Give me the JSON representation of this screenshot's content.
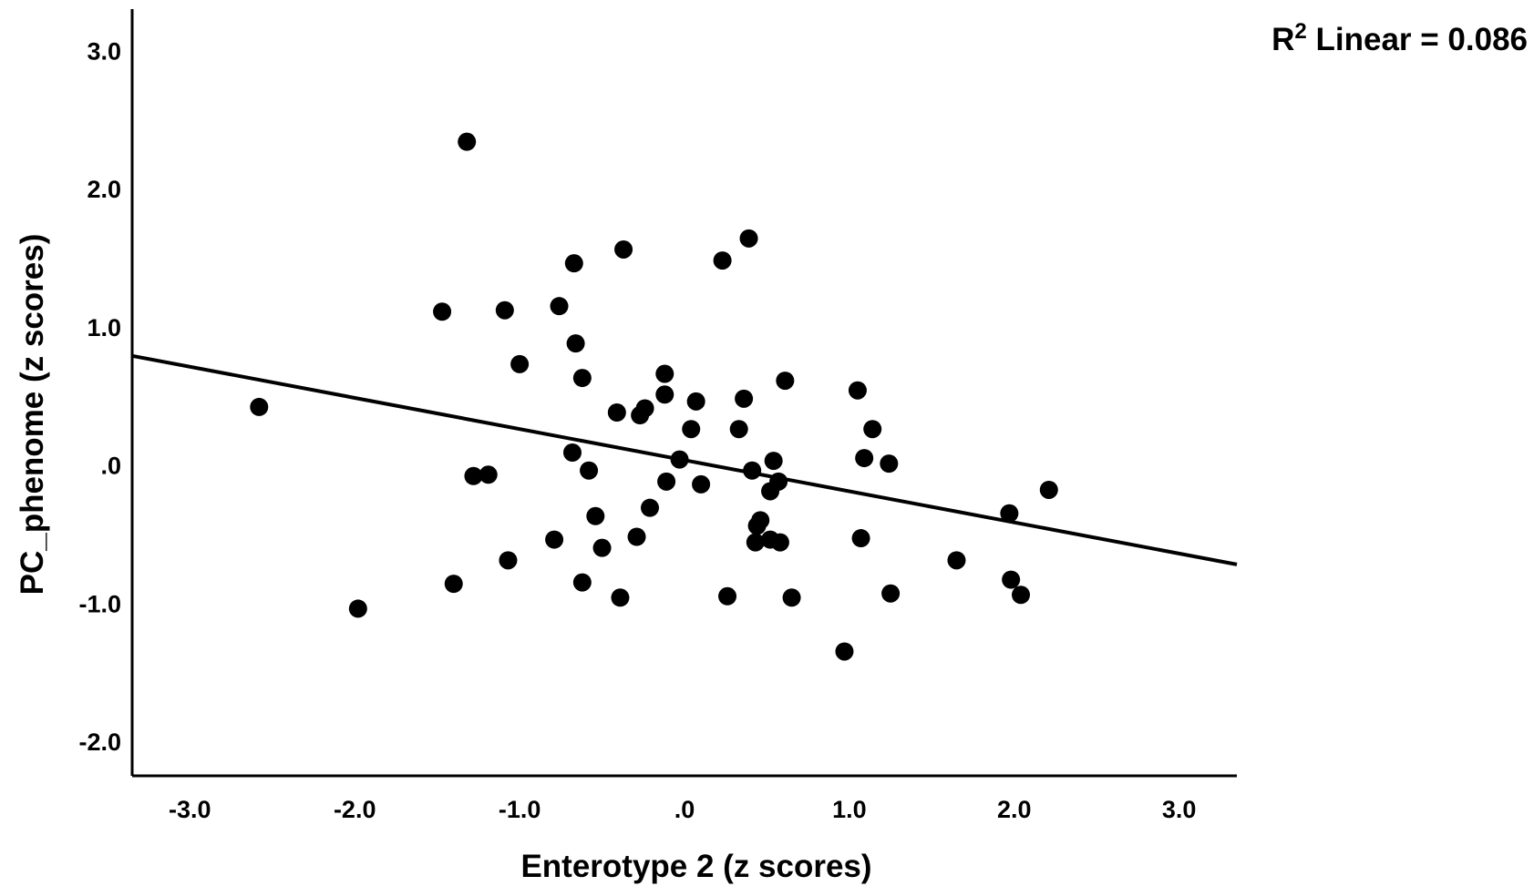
{
  "chart_data": {
    "type": "scatter",
    "xlabel": "Enterotype 2 (z scores)",
    "ylabel": "PC_phenome (z scores)",
    "xlim": [
      -3.35,
      3.35
    ],
    "ylim": [
      -2.25,
      3.3
    ],
    "xticks": [
      {
        "value": -3,
        "label": "-3.0"
      },
      {
        "value": -2,
        "label": "-2.0"
      },
      {
        "value": -1,
        "label": "-1.0"
      },
      {
        "value": 0,
        "label": ".0"
      },
      {
        "value": 1,
        "label": "1.0"
      },
      {
        "value": 2,
        "label": "2.0"
      },
      {
        "value": 3,
        "label": "3.0"
      }
    ],
    "yticks": [
      {
        "value": 3,
        "label": "3.0"
      },
      {
        "value": 2,
        "label": "2.0"
      },
      {
        "value": 1,
        "label": "1.0"
      },
      {
        "value": 0,
        "label": ".0"
      },
      {
        "value": -1,
        "label": "-1.0"
      },
      {
        "value": -2,
        "label": "-2.0"
      }
    ],
    "fit_line": {
      "x": [
        -3.35,
        3.35
      ],
      "y": [
        0.79,
        -0.72
      ]
    },
    "annotation": {
      "prefix": "R",
      "superscript": "2",
      "text": " Linear = 0.086"
    },
    "grid": false,
    "color": "#000000",
    "points": [
      {
        "x": -2.58,
        "y": 0.42
      },
      {
        "x": -1.98,
        "y": -1.04
      },
      {
        "x": -1.47,
        "y": 1.11
      },
      {
        "x": -1.4,
        "y": -0.86
      },
      {
        "x": -1.32,
        "y": 2.34
      },
      {
        "x": -1.28,
        "y": -0.08
      },
      {
        "x": -1.19,
        "y": -0.07
      },
      {
        "x": -1.09,
        "y": 1.12
      },
      {
        "x": -1.07,
        "y": -0.69
      },
      {
        "x": -1.0,
        "y": 0.73
      },
      {
        "x": -0.79,
        "y": -0.54
      },
      {
        "x": -0.76,
        "y": 1.15
      },
      {
        "x": -0.68,
        "y": 0.09
      },
      {
        "x": -0.67,
        "y": 1.46
      },
      {
        "x": -0.66,
        "y": 0.88
      },
      {
        "x": -0.62,
        "y": 0.63
      },
      {
        "x": -0.62,
        "y": -0.85
      },
      {
        "x": -0.58,
        "y": -0.04
      },
      {
        "x": -0.54,
        "y": -0.37
      },
      {
        "x": -0.5,
        "y": -0.6
      },
      {
        "x": -0.41,
        "y": 0.38
      },
      {
        "x": -0.39,
        "y": -0.96
      },
      {
        "x": -0.37,
        "y": 1.56
      },
      {
        "x": -0.29,
        "y": -0.52
      },
      {
        "x": -0.27,
        "y": 0.36
      },
      {
        "x": -0.24,
        "y": 0.41
      },
      {
        "x": -0.21,
        "y": -0.31
      },
      {
        "x": -0.12,
        "y": 0.66
      },
      {
        "x": -0.12,
        "y": 0.51
      },
      {
        "x": -0.11,
        "y": -0.12
      },
      {
        "x": -0.03,
        "y": 0.04
      },
      {
        "x": 0.04,
        "y": 0.26
      },
      {
        "x": 0.07,
        "y": 0.46
      },
      {
        "x": 0.1,
        "y": -0.14
      },
      {
        "x": 0.23,
        "y": 1.48
      },
      {
        "x": 0.26,
        "y": -0.95
      },
      {
        "x": 0.33,
        "y": 0.26
      },
      {
        "x": 0.36,
        "y": 0.48
      },
      {
        "x": 0.39,
        "y": 1.64
      },
      {
        "x": 0.41,
        "y": -0.04
      },
      {
        "x": 0.43,
        "y": -0.56
      },
      {
        "x": 0.44,
        "y": -0.44
      },
      {
        "x": 0.46,
        "y": -0.4
      },
      {
        "x": 0.52,
        "y": -0.54
      },
      {
        "x": 0.52,
        "y": -0.19
      },
      {
        "x": 0.54,
        "y": 0.03
      },
      {
        "x": 0.57,
        "y": -0.12
      },
      {
        "x": 0.58,
        "y": -0.56
      },
      {
        "x": 0.61,
        "y": 0.61
      },
      {
        "x": 0.65,
        "y": -0.96
      },
      {
        "x": 0.97,
        "y": -1.35
      },
      {
        "x": 1.05,
        "y": 0.54
      },
      {
        "x": 1.07,
        "y": -0.53
      },
      {
        "x": 1.09,
        "y": 0.05
      },
      {
        "x": 1.14,
        "y": 0.26
      },
      {
        "x": 1.24,
        "y": 0.01
      },
      {
        "x": 1.25,
        "y": -0.93
      },
      {
        "x": 1.65,
        "y": -0.69
      },
      {
        "x": 1.97,
        "y": -0.35
      },
      {
        "x": 1.98,
        "y": -0.83
      },
      {
        "x": 2.04,
        "y": -0.94
      },
      {
        "x": 2.21,
        "y": -0.18
      }
    ]
  }
}
